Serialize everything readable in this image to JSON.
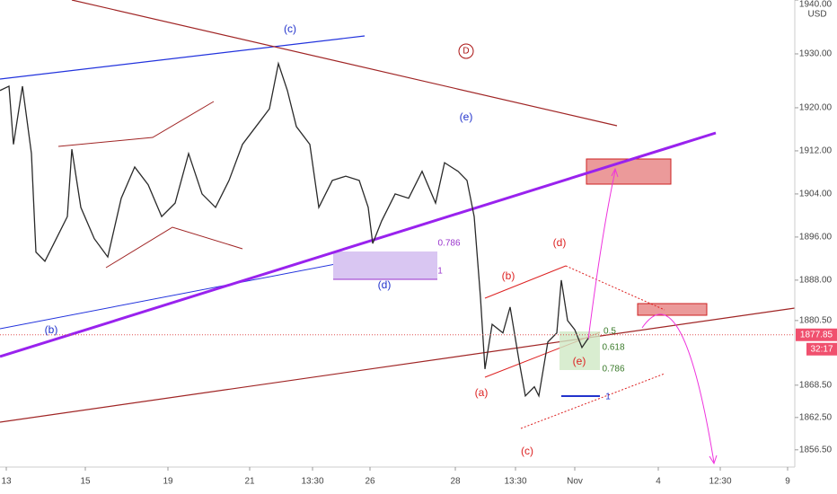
{
  "chart_data": {
    "type": "line",
    "currency": "USD",
    "x": [
      0,
      2,
      3,
      5,
      7,
      8,
      10,
      12,
      15,
      16,
      18,
      21,
      24,
      27,
      30,
      33,
      36,
      39,
      42,
      45,
      48,
      51,
      54,
      57,
      60,
      62,
      64,
      66,
      69,
      71,
      74,
      77,
      80,
      82,
      83,
      85,
      88,
      91,
      94,
      97,
      99,
      102,
      104,
      105.6,
      107,
      108,
      109.6,
      112,
      113.6,
      115.6,
      117,
      119,
      120,
      122,
      124,
      125,
      126.4,
      128,
      129.6,
      131
    ],
    "series": [
      {
        "color": "#2a2a2a",
        "values": [
          1923.2,
          1924,
          1913.2,
          1924,
          1911.5,
          1893.2,
          1891.5,
          1894.8,
          1899.8,
          1912.3,
          1901.5,
          1895.7,
          1892.3,
          1903.2,
          1909,
          1905.7,
          1899.8,
          1902.3,
          1911.5,
          1904,
          1901.5,
          1906.5,
          1913.2,
          1916.5,
          1919.8,
          1928.2,
          1923.2,
          1916.5,
          1913.2,
          1901.5,
          1906.5,
          1907.3,
          1906.5,
          1901.5,
          1894.8,
          1899,
          1904,
          1903.2,
          1908.2,
          1902.3,
          1909.8,
          1908.2,
          1906.5,
          1899.8,
          1884.8,
          1871.5,
          1879.8,
          1878.2,
          1883,
          1873,
          1866.5,
          1868.2,
          1866.5,
          1876.5,
          1878.2,
          1888,
          1880.5,
          1878.8,
          1875.5,
          1877.2
        ]
      }
    ],
    "xlim": [
      0,
      177
    ],
    "xticks": [
      {
        "value": 1.4,
        "label": "13"
      },
      {
        "value": 19,
        "label": "15"
      },
      {
        "value": 37.4,
        "label": "19"
      },
      {
        "value": 55.6,
        "label": "21"
      },
      {
        "value": 69.6,
        "label": "13:30"
      },
      {
        "value": 82.4,
        "label": "26"
      },
      {
        "value": 101.4,
        "label": "28"
      },
      {
        "value": 114.8,
        "label": "13:30"
      },
      {
        "value": 128,
        "label": "Nov"
      },
      {
        "value": 146.6,
        "label": "4"
      },
      {
        "value": 160.4,
        "label": "12:30"
      },
      {
        "value": 175.4,
        "label": "9"
      }
    ],
    "ylim": [
      1853.3,
      1940.0
    ],
    "yticks": [
      {
        "value": 1856.5,
        "label": "1856.50"
      },
      {
        "value": 1862.5,
        "label": "1862.50"
      },
      {
        "value": 1868.5,
        "label": "1868.50"
      },
      {
        "value": 1880.5,
        "label": "1880.50"
      },
      {
        "value": 1888,
        "label": "1888.00"
      },
      {
        "value": 1896,
        "label": "1896.00"
      },
      {
        "value": 1904,
        "label": "1904.00"
      },
      {
        "value": 1912,
        "label": "1912.00"
      },
      {
        "value": 1920,
        "label": "1920.00"
      },
      {
        "value": 1930,
        "label": "1930.00"
      },
      {
        "value": 1940,
        "label": "1940.00"
      }
    ],
    "last_price": {
      "value": 1877.85,
      "label": "1877.85"
    },
    "countdown": "32:17",
    "annotations": [
      {
        "text": "(c)",
        "color": "#2233cc"
      },
      {
        "text": "D",
        "color": "#aa1111"
      },
      {
        "text": "(e)",
        "color": "#2233cc"
      },
      {
        "text": "(b)",
        "color": "#2233cc"
      },
      {
        "text": "0.786",
        "color": "#9933cc"
      },
      {
        "text": "1",
        "color": "#9933cc"
      },
      {
        "text": "(d)",
        "color": "#2233cc"
      },
      {
        "text": "(d)",
        "color": "#dd2222"
      },
      {
        "text": "(b)",
        "color": "#dd2222"
      },
      {
        "text": "(a)",
        "color": "#dd2222"
      },
      {
        "text": "(c)",
        "color": "#dd2222"
      },
      {
        "text": "0.5",
        "color": "#3a7a2a"
      },
      {
        "text": "0.618",
        "color": "#3a7a2a"
      },
      {
        "text": "0.786",
        "color": "#3a7a2a"
      },
      {
        "text": "(e)",
        "color": "#dd2222"
      },
      {
        "text": "1",
        "color": "#2233cc"
      }
    ]
  }
}
